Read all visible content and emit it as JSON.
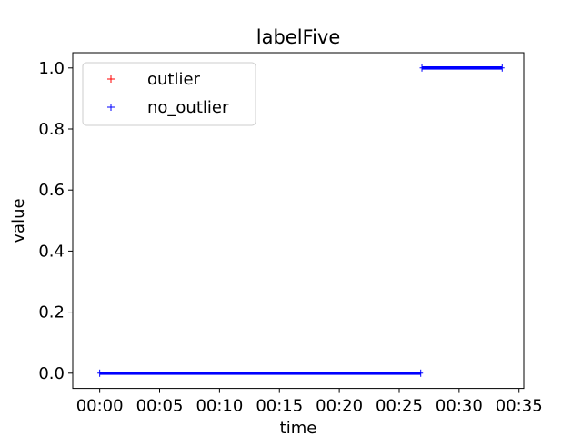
{
  "chart_data": {
    "type": "scatter",
    "title": "labelFive",
    "xlabel": "time",
    "ylabel": "value",
    "x_ticks": [
      "00:00",
      "00:05",
      "00:10",
      "00:15",
      "00:20",
      "00:25",
      "00:30",
      "00:35"
    ],
    "y_ticks": [
      "0.0",
      "0.2",
      "0.4",
      "0.6",
      "0.8",
      "1.0"
    ],
    "xlim": [
      "-00:02.25",
      "00:35.4"
    ],
    "ylim": [
      -0.05,
      1.05
    ],
    "legend_position": "upper-left",
    "grid": false,
    "series": [
      {
        "name": "outlier",
        "color": "#ff0000",
        "marker": "+",
        "points": []
      },
      {
        "name": "no_outlier",
        "color": "#0000ff",
        "marker": "+",
        "segments": [
          {
            "x_start": "00:00",
            "x_end": "00:26.8",
            "y": 0.0
          },
          {
            "x_start": "00:26.9",
            "x_end": "00:33.6",
            "y": 1.0
          }
        ]
      }
    ]
  }
}
